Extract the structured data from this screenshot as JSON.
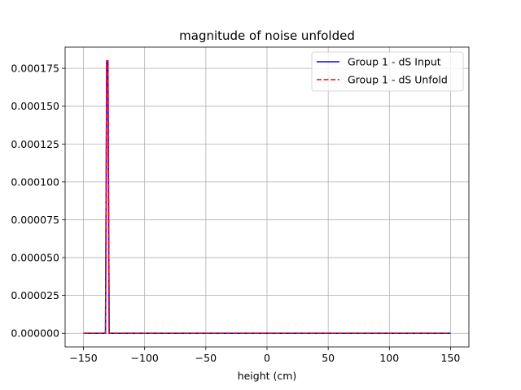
{
  "chart_data": {
    "type": "line",
    "title": "magnitude of noise unfolded",
    "xlabel": "height (cm)",
    "ylabel": "",
    "xlim": [
      -165,
      165
    ],
    "ylim": [
      -9e-06,
      0.000189
    ],
    "xticks": [
      -150,
      -100,
      -50,
      0,
      50,
      100,
      150
    ],
    "xtick_labels": [
      "−150",
      "−100",
      "−50",
      "0",
      "50",
      "100",
      "150"
    ],
    "yticks": [
      0,
      2.5e-05,
      5e-05,
      7.5e-05,
      0.0001,
      0.000125,
      0.00015,
      0.000175
    ],
    "ytick_labels": [
      "0.000000",
      "0.000025",
      "0.000050",
      "0.000075",
      "0.000100",
      "0.000125",
      "0.000150",
      "0.000175"
    ],
    "grid": true,
    "legend_position": "top-right",
    "series": [
      {
        "name": "Group 1 - dS Input",
        "color": "#0000ff",
        "dash": "solid",
        "x": [
          -150,
          -132,
          -131,
          -130,
          -129,
          150
        ],
        "y": [
          0,
          0,
          0.00018,
          0.00018,
          0,
          0
        ]
      },
      {
        "name": "Group 1 - dS Unfold",
        "color": "#ff0000",
        "dash": "dashed",
        "x": [
          -150,
          -132,
          -131,
          -130,
          -129,
          150
        ],
        "y": [
          0,
          0,
          0.00018,
          0.00018,
          0,
          0
        ]
      }
    ]
  }
}
